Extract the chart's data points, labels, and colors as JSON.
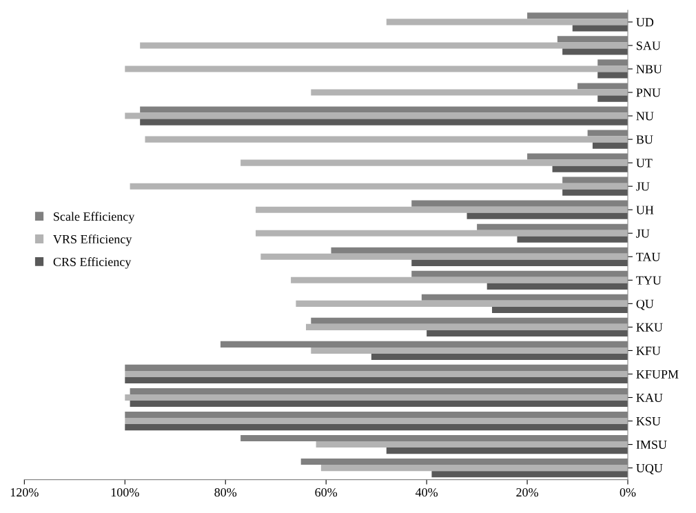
{
  "chart_data": {
    "type": "bar",
    "orientation": "horizontal",
    "categories": [
      "UD",
      "SAU",
      "NBU",
      "PNU",
      "NU",
      "BU",
      "UT",
      "JU",
      "UH",
      "JU",
      "TAU",
      "TYU",
      "QU",
      "KKU",
      "KFU",
      "KFUPM",
      "KAU",
      "KSU",
      "IMSU",
      "UQU"
    ],
    "series": [
      {
        "name": "Scale Efficiency",
        "color": "#808080",
        "values": [
          20,
          14,
          6,
          10,
          97,
          8,
          20,
          13,
          43,
          30,
          59,
          43,
          41,
          63,
          81,
          100,
          99,
          100,
          77,
          65
        ]
      },
      {
        "name": "VRS Efficiency",
        "color": "#b3b3b3",
        "values": [
          48,
          97,
          100,
          63,
          100,
          96,
          77,
          99,
          74,
          74,
          73,
          67,
          66,
          64,
          63,
          100,
          100,
          100,
          62,
          61
        ]
      },
      {
        "name": "CRS Efficiency",
        "color": "#595959",
        "values": [
          11,
          13,
          6,
          6,
          97,
          7,
          15,
          13,
          32,
          22,
          43,
          28,
          27,
          40,
          51,
          100,
          99,
          100,
          48,
          39
        ]
      }
    ],
    "xlim": [
      120,
      0
    ],
    "xticks": [
      {
        "value": 120,
        "label": "120%"
      },
      {
        "value": 100,
        "label": "100%"
      },
      {
        "value": 80,
        "label": "80%"
      },
      {
        "value": 60,
        "label": "60%"
      },
      {
        "value": 40,
        "label": "40%"
      },
      {
        "value": 20,
        "label": "20%"
      },
      {
        "value": 0,
        "label": "0%"
      }
    ],
    "legend": "left",
    "grid": false
  }
}
